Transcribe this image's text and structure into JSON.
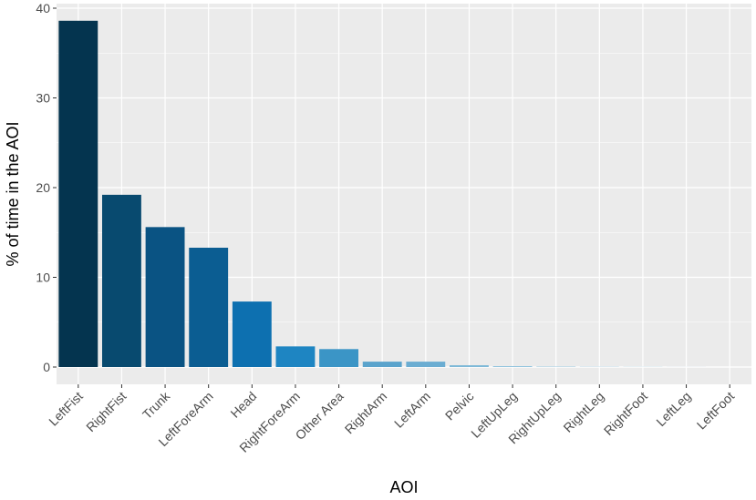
{
  "chart_data": {
    "type": "bar",
    "xlabel": "AOI",
    "ylabel": "% of time in the AOI",
    "ylim": [
      0,
      40
    ],
    "yticks": [
      0,
      10,
      20,
      30,
      40
    ],
    "grid": true,
    "categories": [
      "LeftFist",
      "RightFist",
      "Trunk",
      "LeftForeArm",
      "Head",
      "RightForeArm",
      "Other Area",
      "RightArm",
      "LeftArm",
      "Pelvic",
      "LeftUpLeg",
      "RightUpLeg",
      "RightLeg",
      "RightFoot",
      "LeftLeg",
      "LeftFoot"
    ],
    "values": [
      38.6,
      19.2,
      15.6,
      13.3,
      7.3,
      2.3,
      2.0,
      0.6,
      0.6,
      0.2,
      0.1,
      0.05,
      0.03,
      0.02,
      0.01,
      0.0
    ],
    "colors": [
      "#04344f",
      "#084a6f",
      "#0a5383",
      "#0b5d92",
      "#0d70b0",
      "#1e85c2",
      "#3b95c6",
      "#5aa3cc",
      "#6badd2",
      "#7eb9d8",
      "#8fc4de",
      "#9dcbe2",
      "#a9d2e6",
      "#b3d8ea",
      "#bddeed",
      "#c6e3f0"
    ],
    "panel_background": "#ebebeb",
    "gridline_color": "#ffffff"
  }
}
